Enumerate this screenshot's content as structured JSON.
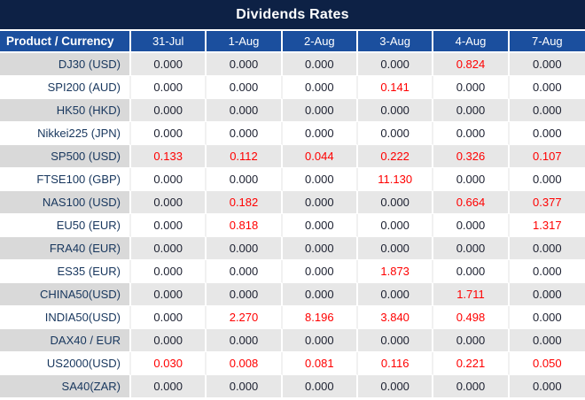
{
  "chart_data": {
    "type": "table",
    "title": "Dividends Rates",
    "columns": [
      "Product / Currency",
      "31-Jul",
      "1-Aug",
      "2-Aug",
      "3-Aug",
      "4-Aug",
      "7-Aug"
    ],
    "rows": [
      {
        "product": "DJ30 (USD)",
        "values": [
          "0.000",
          "0.000",
          "0.000",
          "0.000",
          "0.824",
          "0.000"
        ]
      },
      {
        "product": "SPI200 (AUD)",
        "values": [
          "0.000",
          "0.000",
          "0.000",
          "0.141",
          "0.000",
          "0.000"
        ]
      },
      {
        "product": "HK50 (HKD)",
        "values": [
          "0.000",
          "0.000",
          "0.000",
          "0.000",
          "0.000",
          "0.000"
        ]
      },
      {
        "product": "Nikkei225 (JPN)",
        "values": [
          "0.000",
          "0.000",
          "0.000",
          "0.000",
          "0.000",
          "0.000"
        ]
      },
      {
        "product": "SP500 (USD)",
        "values": [
          "0.133",
          "0.112",
          "0.044",
          "0.222",
          "0.326",
          "0.107"
        ]
      },
      {
        "product": "FTSE100 (GBP)",
        "values": [
          "0.000",
          "0.000",
          "0.000",
          "11.130",
          "0.000",
          "0.000"
        ]
      },
      {
        "product": "NAS100 (USD)",
        "values": [
          "0.000",
          "0.182",
          "0.000",
          "0.000",
          "0.664",
          "0.377"
        ]
      },
      {
        "product": "EU50 (EUR)",
        "values": [
          "0.000",
          "0.818",
          "0.000",
          "0.000",
          "0.000",
          "1.317"
        ]
      },
      {
        "product": "FRA40 (EUR)",
        "values": [
          "0.000",
          "0.000",
          "0.000",
          "0.000",
          "0.000",
          "0.000"
        ]
      },
      {
        "product": "ES35 (EUR)",
        "values": [
          "0.000",
          "0.000",
          "0.000",
          "1.873",
          "0.000",
          "0.000"
        ]
      },
      {
        "product": "CHINA50(USD)",
        "values": [
          "0.000",
          "0.000",
          "0.000",
          "0.000",
          "1.711",
          "0.000"
        ]
      },
      {
        "product": "INDIA50(USD)",
        "values": [
          "0.000",
          "2.270",
          "8.196",
          "3.840",
          "0.498",
          "0.000"
        ]
      },
      {
        "product": "DAX40 / EUR",
        "values": [
          "0.000",
          "0.000",
          "0.000",
          "0.000",
          "0.000",
          "0.000"
        ]
      },
      {
        "product": "US2000(USD)",
        "values": [
          "0.030",
          "0.008",
          "0.081",
          "0.116",
          "0.221",
          "0.050"
        ]
      },
      {
        "product": "SA40(ZAR)",
        "values": [
          "0.000",
          "0.000",
          "0.000",
          "0.000",
          "0.000",
          "0.000"
        ]
      }
    ],
    "zero_value": "0.000",
    "legend_note": "non-zero dividend values shown in red",
    "colors": {
      "title_bg": "#0d2145",
      "header_bg": "#1b4f9e",
      "row_gray": "#e7e7e7",
      "row_gray_first": "#d9d9d9",
      "product_text": "#17365d",
      "value_text": "#1c2030",
      "nonzero_text": "#ff0000"
    }
  }
}
